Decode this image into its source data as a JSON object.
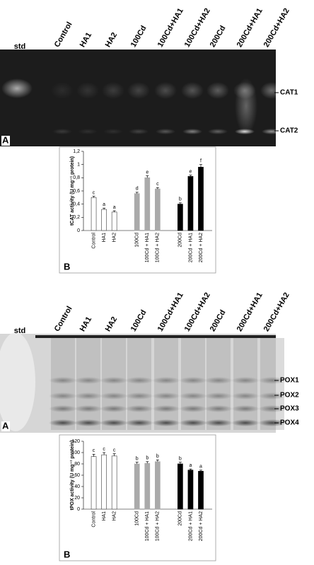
{
  "gel_top": {
    "lanes": [
      "std",
      "Control",
      "HA1",
      "HA2",
      "100Cd",
      "100Cd+HA1",
      "100Cd+HA2",
      "200Cd",
      "200Cd+HA1",
      "200Cd+HA2"
    ],
    "bands": [
      "CAT1",
      "CAT2"
    ],
    "panel": "A"
  },
  "chart_data": [
    {
      "type": "bar",
      "ylabel": "tCAT activity (U mg⁻¹ protein)",
      "panel": "B",
      "categories": [
        "Control",
        "HA1",
        "HA2",
        "100Cd",
        "100Cd + HA1",
        "100Cd + HA2",
        "200Cd",
        "200Cd + HA1",
        "200Cd + HA2"
      ],
      "values": [
        0.5,
        0.32,
        0.28,
        0.56,
        0.8,
        0.63,
        0.4,
        0.82,
        0.96
      ],
      "errors": [
        0.02,
        0.02,
        0.02,
        0.02,
        0.03,
        0.02,
        0.02,
        0.02,
        0.04
      ],
      "letters": [
        "c",
        "a",
        "a",
        "d",
        "e",
        "c",
        "b",
        "e",
        "f"
      ],
      "colors": [
        "#ffffff",
        "#ffffff",
        "#ffffff",
        "#aaaaaa",
        "#aaaaaa",
        "#aaaaaa",
        "#000000",
        "#000000",
        "#000000"
      ],
      "ylim": [
        0,
        1.2
      ],
      "yticks": [
        0,
        {
          "value": 0.2,
          "label": "0,2"
        },
        {
          "value": 0.4,
          "label": "0,4"
        },
        {
          "value": 0.6,
          "label": "0,6"
        },
        {
          "value": 0.8,
          "label": "0,8"
        },
        1,
        {
          "value": 1.2,
          "label": "1,2"
        }
      ]
    },
    {
      "type": "bar",
      "ylabel": "tPOX activity (U mg⁻¹ protein)",
      "panel": "B",
      "categories": [
        "Control",
        "HA1",
        "HA2",
        "100Cd",
        "100Cd + HA1",
        "100Cd + HA2",
        "200Cd",
        "200Cd + HA1",
        "200Cd + HA2"
      ],
      "values": [
        93,
        96,
        94,
        80,
        81,
        84,
        80,
        69,
        67
      ],
      "errors": [
        4,
        4,
        4,
        3,
        3,
        3,
        3,
        2,
        2
      ],
      "letters": [
        "c",
        "c",
        "c",
        "b",
        "b",
        "b",
        "b",
        "a",
        "a"
      ],
      "colors": [
        "#ffffff",
        "#ffffff",
        "#ffffff",
        "#aaaaaa",
        "#aaaaaa",
        "#aaaaaa",
        "#000000",
        "#000000",
        "#000000"
      ],
      "ylim": [
        0,
        120
      ],
      "yticks": [
        0,
        20,
        40,
        60,
        80,
        100,
        120
      ]
    }
  ],
  "gel_bottom": {
    "lanes": [
      "std",
      "Control",
      "HA1",
      "HA2",
      "100Cd",
      "100Cd+HA1",
      "100Cd+HA2",
      "200Cd",
      "200Cd+HA1",
      "200Cd+HA2"
    ],
    "bands": [
      "POX1",
      "POX2",
      "POX3",
      "POX4"
    ],
    "panel": "A"
  }
}
